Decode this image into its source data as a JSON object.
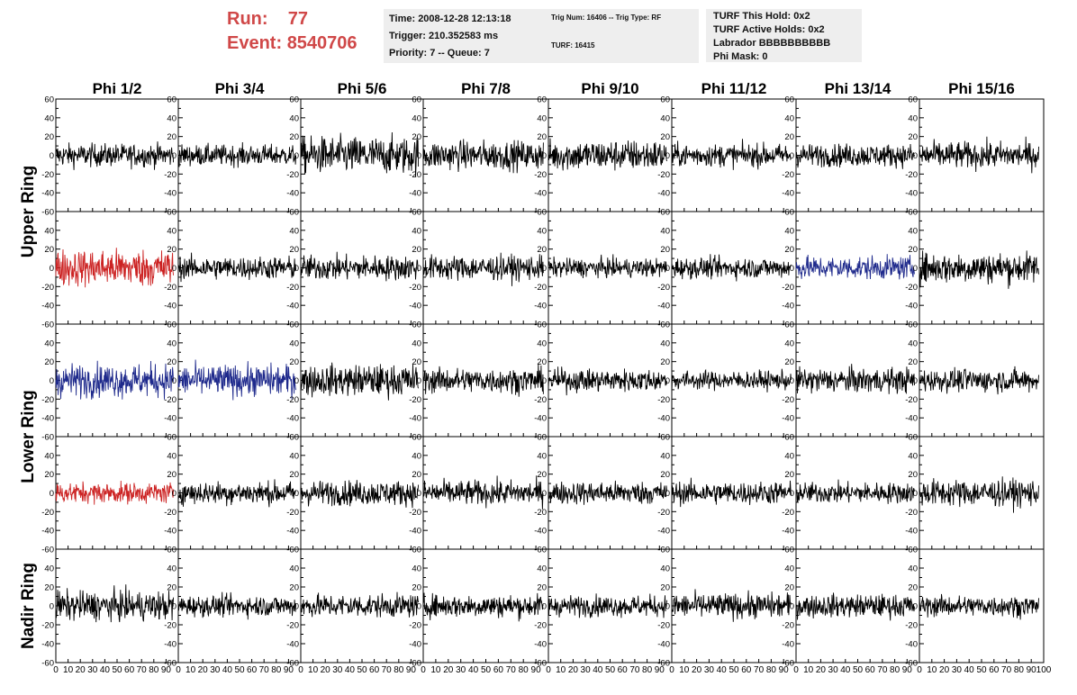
{
  "header": {
    "run_label": "Run:",
    "run_value": "77",
    "event_label": "Event:",
    "event_value": "8540706"
  },
  "info_box_1": {
    "time": "Time: 2008-12-28 12:13:18",
    "trigger": "Trigger: 210.352583 ms",
    "priority": "Priority: 7 -- Queue: 7"
  },
  "info_box_2": {
    "trig": "Trig Num: 16406 -- Trig Type: RF",
    "turf": "TURF: 16415"
  },
  "info_box_3": {
    "hold": "TURF This Hold: 0x2",
    "active": "TURF Active Holds: 0x2",
    "labrador": "Labrador BBBBBBBBBB",
    "phimask": "Phi Mask: 0"
  },
  "colors": {
    "black": "#000000",
    "red": "#cc2222",
    "blue": "#1f2a8c"
  },
  "chart_data": {
    "type": "line",
    "columns": [
      "Phi 1/2",
      "Phi 3/4",
      "Phi 5/6",
      "Phi 7/8",
      "Phi 9/10",
      "Phi 11/12",
      "Phi 13/14",
      "Phi 15/16"
    ],
    "ring_labels": [
      "Upper Ring",
      "Lower Ring",
      "Nadir Ring"
    ],
    "ylim": [
      -60,
      60
    ],
    "xlim": [
      0,
      100
    ],
    "y_ticks": [
      -60,
      -40,
      -20,
      0,
      20,
      40,
      60
    ],
    "x_ticks": [
      0,
      10,
      20,
      30,
      40,
      50,
      60,
      70,
      80,
      90,
      100
    ],
    "trace_x_range": [
      0,
      96
    ],
    "rows": [
      {
        "colors": [
          "black",
          "black",
          "black",
          "black",
          "black",
          "black",
          "black",
          "black"
        ],
        "amplitude": [
          11,
          10,
          18,
          14,
          15,
          11,
          11,
          13
        ]
      },
      {
        "colors": [
          "red",
          "black",
          "black",
          "black",
          "black",
          "black",
          "blue",
          "black"
        ],
        "amplitude": [
          18,
          11,
          12,
          12,
          9,
          10,
          11,
          15
        ]
      },
      {
        "colors": [
          "blue",
          "blue",
          "black",
          "black",
          "black",
          "black",
          "black",
          "black"
        ],
        "amplitude": [
          16,
          15,
          15,
          12,
          11,
          9,
          12,
          11
        ]
      },
      {
        "colors": [
          "red",
          "black",
          "black",
          "black",
          "black",
          "black",
          "black",
          "black"
        ],
        "amplitude": [
          10,
          11,
          12,
          12,
          11,
          11,
          10,
          13
        ]
      },
      {
        "colors": [
          "black",
          "black",
          "black",
          "black",
          "black",
          "black",
          "black",
          "black"
        ],
        "amplitude": [
          14,
          10,
          11,
          11,
          10,
          12,
          11,
          10
        ]
      }
    ]
  }
}
